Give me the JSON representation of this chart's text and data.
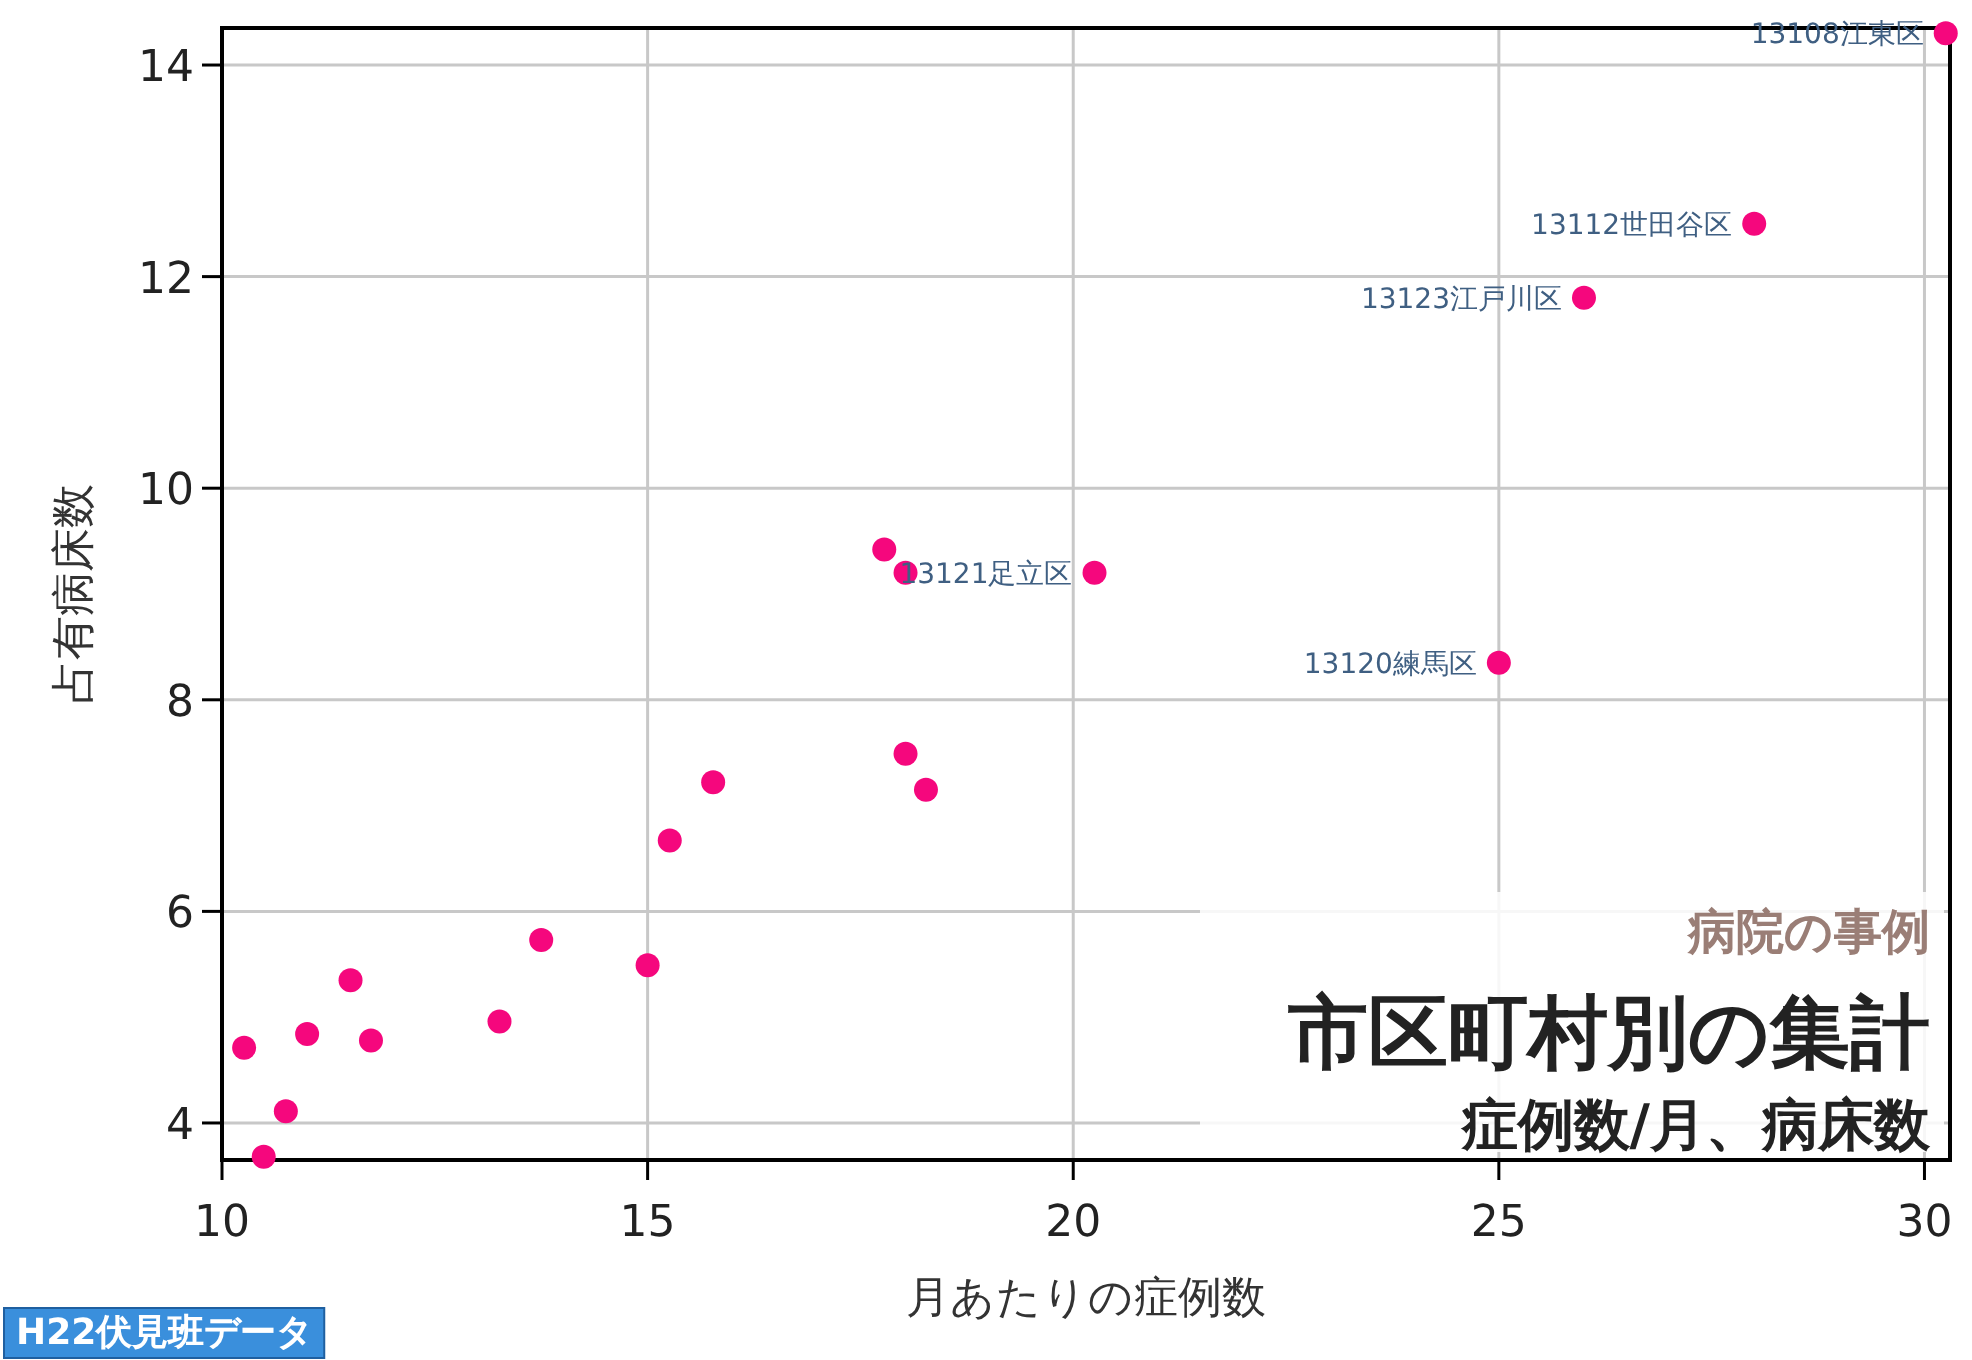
{
  "chart_data": {
    "type": "scatter",
    "title": "市区町村別の集計",
    "subtitle": "症例数/月、病床数",
    "xlabel": "月あたりの症例数",
    "ylabel": "占有病床数",
    "x": [
      30.25,
      28,
      26,
      20.25,
      25,
      17.78,
      18.03,
      18.03,
      18.27,
      15.77,
      15.26,
      13.75,
      15.0,
      13.26,
      11.51,
      11.75,
      11.0,
      10.26,
      10.75,
      10.49
    ],
    "series": [
      {
        "color": "#f5077d",
        "values": [
          14.3,
          12.5,
          11.8,
          9.2,
          8.35,
          9.42,
          9.2,
          7.49,
          7.15,
          7.22,
          6.67,
          5.73,
          5.49,
          4.96,
          5.35,
          4.78,
          4.84,
          4.71,
          4.11,
          3.68
        ]
      }
    ],
    "xlim": [
      10,
      30.3
    ],
    "ylim": [
      3.65,
      14.35
    ],
    "xticks": [
      10,
      15,
      20,
      25,
      30
    ],
    "yticks": [
      4,
      6,
      8,
      10,
      12,
      14
    ],
    "grid": true,
    "marker": "circle",
    "annotations": [
      {
        "text": "13108江東区",
        "x": 30.25,
        "y": 14.3
      },
      {
        "text": "13112世田谷区",
        "x": 28,
        "y": 12.5
      },
      {
        "text": "13123江戸川区",
        "x": 26,
        "y": 11.8
      },
      {
        "text": "13121足立区",
        "x": 20.25,
        "y": 9.2
      },
      {
        "text": "13120練馬区",
        "x": 25,
        "y": 8.35
      },
      "病院の事例",
      "H22伏見班データ"
    ]
  }
}
